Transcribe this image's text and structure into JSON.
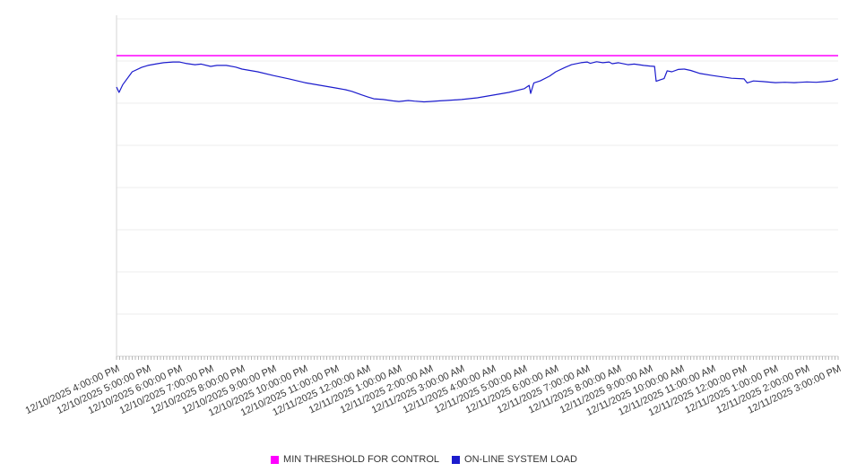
{
  "chart_data": {
    "type": "line",
    "title": "",
    "xlabel": "",
    "ylabel": "",
    "ylim": [
      0,
      100
    ],
    "grid": true,
    "legend_position": "bottom",
    "x_tick_interval": "1 hour",
    "x_labels": [
      "12/10/2025 4:00:00 PM",
      "12/10/2025 5:00:00 PM",
      "12/10/2025 6:00:00 PM",
      "12/10/2025 7:00:00 PM",
      "12/10/2025 8:00:00 PM",
      "12/10/2025 9:00:00 PM",
      "12/10/2025 10:00:00 PM",
      "12/10/2025 11:00:00 PM",
      "12/11/2025 12:00:00 AM",
      "12/11/2025 1:00:00 AM",
      "12/11/2025 2:00:00 AM",
      "12/11/2025 3:00:00 AM",
      "12/11/2025 4:00:00 AM",
      "12/11/2025 5:00:00 AM",
      "12/11/2025 6:00:00 AM",
      "12/11/2025 7:00:00 AM",
      "12/11/2025 8:00:00 AM",
      "12/11/2025 9:00:00 AM",
      "12/11/2025 10:00:00 AM",
      "12/11/2025 11:00:00 AM",
      "12/11/2025 12:00:00 PM",
      "12/11/2025 1:00:00 PM",
      "12/11/2025 2:00:00 PM",
      "12/11/2025 3:00:00 PM"
    ],
    "series": [
      {
        "name": "MIN THRESHOLD FOR CONTROL",
        "color": "#ff00ff",
        "style": "threshold",
        "value": 89.1
      },
      {
        "name": "ON-LINE SYSTEM LOAD",
        "color": "#1c1ccd",
        "style": "line",
        "points": [
          [
            0,
            79.8
          ],
          [
            0.08,
            78.2
          ],
          [
            0.2,
            80.5
          ],
          [
            0.5,
            84.3
          ],
          [
            0.8,
            85.6
          ],
          [
            1.0,
            86.2
          ],
          [
            1.3,
            86.7
          ],
          [
            1.5,
            87.0
          ],
          [
            1.8,
            87.2
          ],
          [
            2.0,
            87.2
          ],
          [
            2.2,
            86.8
          ],
          [
            2.5,
            86.4
          ],
          [
            2.7,
            86.6
          ],
          [
            3.0,
            85.9
          ],
          [
            3.2,
            86.2
          ],
          [
            3.5,
            86.2
          ],
          [
            3.8,
            85.7
          ],
          [
            4.0,
            85.1
          ],
          [
            4.5,
            84.3
          ],
          [
            5.0,
            83.2
          ],
          [
            5.5,
            82.2
          ],
          [
            6.0,
            81.1
          ],
          [
            6.5,
            80.3
          ],
          [
            7.0,
            79.5
          ],
          [
            7.3,
            79.0
          ],
          [
            7.5,
            78.5
          ],
          [
            7.8,
            77.5
          ],
          [
            8.0,
            76.9
          ],
          [
            8.2,
            76.3
          ],
          [
            8.5,
            76.1
          ],
          [
            8.8,
            75.7
          ],
          [
            9.0,
            75.5
          ],
          [
            9.3,
            75.8
          ],
          [
            9.5,
            75.6
          ],
          [
            9.8,
            75.4
          ],
          [
            10.0,
            75.5
          ],
          [
            10.3,
            75.7
          ],
          [
            10.5,
            75.8
          ],
          [
            11.0,
            76.1
          ],
          [
            11.5,
            76.6
          ],
          [
            12.0,
            77.4
          ],
          [
            12.5,
            78.2
          ],
          [
            13.0,
            79.3
          ],
          [
            13.15,
            80.3
          ],
          [
            13.2,
            77.9
          ],
          [
            13.3,
            81.0
          ],
          [
            13.5,
            81.6
          ],
          [
            13.8,
            83.0
          ],
          [
            14.0,
            84.3
          ],
          [
            14.3,
            85.6
          ],
          [
            14.5,
            86.4
          ],
          [
            14.8,
            87.0
          ],
          [
            15.0,
            87.2
          ],
          [
            15.1,
            86.8
          ],
          [
            15.3,
            87.3
          ],
          [
            15.5,
            87.0
          ],
          [
            15.7,
            87.2
          ],
          [
            15.8,
            86.7
          ],
          [
            16.0,
            87.0
          ],
          [
            16.3,
            86.4
          ],
          [
            16.5,
            86.6
          ],
          [
            16.8,
            86.2
          ],
          [
            17.0,
            86.0
          ],
          [
            17.15,
            85.9
          ],
          [
            17.2,
            81.5
          ],
          [
            17.35,
            82.0
          ],
          [
            17.45,
            82.3
          ],
          [
            17.55,
            84.6
          ],
          [
            17.7,
            84.3
          ],
          [
            17.9,
            85.0
          ],
          [
            18.1,
            85.1
          ],
          [
            18.3,
            84.7
          ],
          [
            18.6,
            83.8
          ],
          [
            19.0,
            83.2
          ],
          [
            19.3,
            82.8
          ],
          [
            19.6,
            82.4
          ],
          [
            20.0,
            82.2
          ],
          [
            20.1,
            81.0
          ],
          [
            20.3,
            81.6
          ],
          [
            20.6,
            81.4
          ],
          [
            21.0,
            81.1
          ],
          [
            21.3,
            81.2
          ],
          [
            21.6,
            81.1
          ],
          [
            22.0,
            81.3
          ],
          [
            22.3,
            81.2
          ],
          [
            22.6,
            81.4
          ],
          [
            22.8,
            81.6
          ],
          [
            23.0,
            82.2
          ]
        ]
      }
    ]
  }
}
